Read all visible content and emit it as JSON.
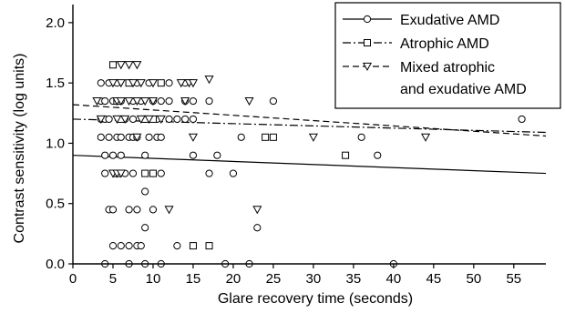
{
  "chart_data": {
    "type": "scatter",
    "xlabel": "Glare recovery time (seconds)",
    "ylabel": "Contrast sensitivity (log units)",
    "xlim": [
      0,
      59
    ],
    "ylim": [
      0,
      2.15
    ],
    "x_ticks": [
      "0",
      "5",
      "10",
      "15",
      "20",
      "25",
      "30",
      "35",
      "40",
      "45",
      "50",
      "55"
    ],
    "y_ticks": [
      "0.0",
      "0.5",
      "1.0",
      "1.5",
      "2.0"
    ],
    "legend_position": "top-right",
    "series": [
      {
        "name": "Exudative AMD",
        "marker": "circle",
        "line_style": "solid",
        "trend": [
          [
            0,
            0.9
          ],
          [
            59,
            0.75
          ]
        ],
        "points": [
          [
            3.5,
            1.5
          ],
          [
            3.5,
            1.35
          ],
          [
            3.5,
            1.2
          ],
          [
            3.5,
            1.05
          ],
          [
            4,
            1.35
          ],
          [
            4,
            1.2
          ],
          [
            4,
            0.9
          ],
          [
            4,
            0.75
          ],
          [
            4,
            0.0
          ],
          [
            4.5,
            1.5
          ],
          [
            4.5,
            1.2
          ],
          [
            4.5,
            1.05
          ],
          [
            4.5,
            0.45
          ],
          [
            5,
            1.35
          ],
          [
            5,
            0.9
          ],
          [
            5,
            0.45
          ],
          [
            5,
            0.15
          ],
          [
            5.5,
            1.5
          ],
          [
            5.5,
            1.05
          ],
          [
            5.5,
            0.75
          ],
          [
            6,
            1.35
          ],
          [
            6,
            1.05
          ],
          [
            6,
            0.9
          ],
          [
            6,
            0.15
          ],
          [
            6.5,
            1.2
          ],
          [
            6.5,
            0.75
          ],
          [
            7,
            1.05
          ],
          [
            7,
            0.45
          ],
          [
            7,
            0.15
          ],
          [
            7,
            0.0
          ],
          [
            7.5,
            1.35
          ],
          [
            7.5,
            1.2
          ],
          [
            7.5,
            1.05
          ],
          [
            7.5,
            0.75
          ],
          [
            8,
            1.5
          ],
          [
            8,
            1.05
          ],
          [
            8,
            0.45
          ],
          [
            8,
            0.15
          ],
          [
            8.5,
            1.35
          ],
          [
            8.5,
            0.15
          ],
          [
            9,
            1.2
          ],
          [
            9,
            0.9
          ],
          [
            9,
            0.6
          ],
          [
            9,
            0.3
          ],
          [
            9,
            0.0
          ],
          [
            9.5,
            1.5
          ],
          [
            9.5,
            1.05
          ],
          [
            10,
            1.35
          ],
          [
            10,
            0.75
          ],
          [
            10,
            0.45
          ],
          [
            10.5,
            1.2
          ],
          [
            10.5,
            1.05
          ],
          [
            11,
            1.35
          ],
          [
            11,
            1.05
          ],
          [
            11,
            0.75
          ],
          [
            11,
            0.0
          ],
          [
            12,
            1.5
          ],
          [
            12,
            1.35
          ],
          [
            12,
            1.2
          ],
          [
            13,
            1.2
          ],
          [
            13,
            0.15
          ],
          [
            14,
            1.5
          ],
          [
            14,
            1.35
          ],
          [
            14,
            1.2
          ],
          [
            15,
            1.35
          ],
          [
            15,
            1.2
          ],
          [
            15,
            0.9
          ],
          [
            17,
            1.35
          ],
          [
            17,
            0.75
          ],
          [
            18,
            0.9
          ],
          [
            19,
            0.0
          ],
          [
            20,
            0.75
          ],
          [
            21,
            1.05
          ],
          [
            22,
            0.0
          ],
          [
            23,
            0.3
          ],
          [
            25,
            1.35
          ],
          [
            36,
            1.05
          ],
          [
            38,
            0.9
          ],
          [
            40,
            0.0
          ],
          [
            56,
            1.2
          ]
        ]
      },
      {
        "name": "Atrophic AMD",
        "marker": "square",
        "line_style": "dashdot",
        "trend": [
          [
            0,
            1.2
          ],
          [
            59,
            1.09
          ]
        ],
        "points": [
          [
            5,
            1.65
          ],
          [
            5.5,
            1.35
          ],
          [
            5.5,
            0.75
          ],
          [
            6,
            1.2
          ],
          [
            7,
            1.5
          ],
          [
            9,
            1.2
          ],
          [
            9,
            0.75
          ],
          [
            10,
            1.2
          ],
          [
            10,
            0.75
          ],
          [
            11,
            1.5
          ],
          [
            15,
            0.15
          ],
          [
            17,
            0.15
          ],
          [
            24,
            1.05
          ],
          [
            25,
            1.05
          ],
          [
            34,
            0.9
          ]
        ]
      },
      {
        "name": "Mixed atrophic\nand exudative AMD",
        "marker": "triangle",
        "line_style": "dashed",
        "trend": [
          [
            0,
            1.32
          ],
          [
            59,
            1.06
          ]
        ],
        "points": [
          [
            3,
            1.35
          ],
          [
            3.5,
            1.2
          ],
          [
            5,
            1.5
          ],
          [
            5,
            0.75
          ],
          [
            5.5,
            1.35
          ],
          [
            5.5,
            1.2
          ],
          [
            5.5,
            0.75
          ],
          [
            6,
            1.65
          ],
          [
            6,
            1.5
          ],
          [
            6,
            1.35
          ],
          [
            6,
            0.75
          ],
          [
            6.5,
            1.2
          ],
          [
            7,
            1.65
          ],
          [
            7,
            1.35
          ],
          [
            7.5,
            1.5
          ],
          [
            8,
            1.65
          ],
          [
            8,
            1.35
          ],
          [
            8,
            1.05
          ],
          [
            8.5,
            1.5
          ],
          [
            8.5,
            1.2
          ],
          [
            9,
            1.35
          ],
          [
            9.5,
            1.2
          ],
          [
            10,
            1.5
          ],
          [
            10,
            1.35
          ],
          [
            11,
            1.2
          ],
          [
            12,
            0.45
          ],
          [
            13.5,
            1.5
          ],
          [
            14,
            1.35
          ],
          [
            14.5,
            1.5
          ],
          [
            15,
            1.5
          ],
          [
            15,
            1.05
          ],
          [
            17,
            1.53
          ],
          [
            22,
            1.35
          ],
          [
            23,
            0.45
          ],
          [
            30,
            1.05
          ],
          [
            38,
            1.35
          ],
          [
            44,
            1.05
          ]
        ]
      }
    ]
  }
}
